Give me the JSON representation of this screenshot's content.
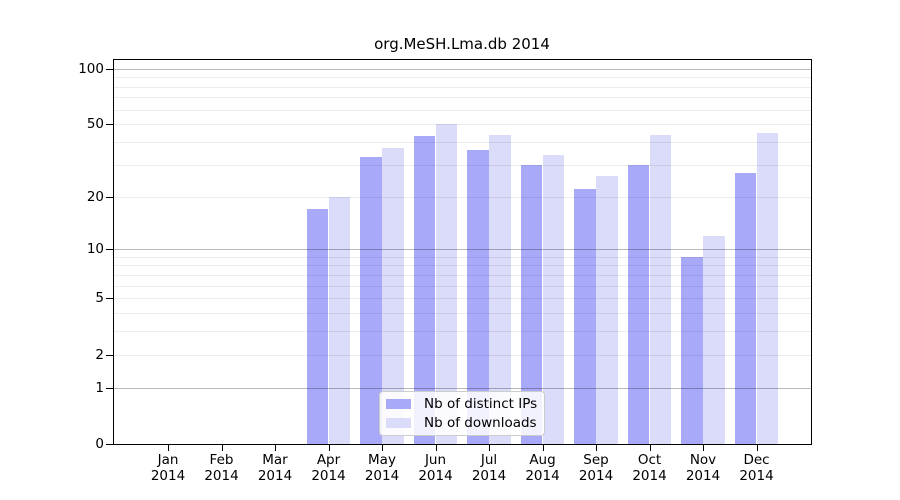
{
  "chart_data": {
    "type": "bar",
    "title": "org.MeSH.Lma.db 2014",
    "categories": [
      "Jan",
      "Feb",
      "Mar",
      "Apr",
      "May",
      "Jun",
      "Jul",
      "Aug",
      "Sep",
      "Oct",
      "Nov",
      "Dec"
    ],
    "year_label": "2014",
    "series": [
      {
        "name": "Nb of distinct IPs",
        "color": "#a9a9fa",
        "values": [
          0,
          0,
          0,
          17,
          33,
          43,
          36,
          30,
          22,
          30,
          9,
          27
        ]
      },
      {
        "name": "Nb of downloads",
        "color": "#dbdbfa",
        "values": [
          0,
          0,
          0,
          20,
          37,
          50,
          44,
          34,
          26,
          44,
          12,
          45
        ]
      }
    ],
    "yscale": "log1p",
    "ylim": [
      0,
      113
    ],
    "yticks": [
      0,
      1,
      2,
      5,
      10,
      20,
      50,
      100
    ],
    "yticks_minor": [
      3,
      4,
      6,
      7,
      8,
      9,
      30,
      40,
      60,
      70,
      80,
      90
    ],
    "yticks_emphasized": [
      1,
      10,
      100
    ],
    "grid": "horizontal",
    "legend_position": "bottom-center"
  },
  "colors": {
    "axis": "#000000",
    "grid_major": "rgba(0,0,0,0.28)",
    "grid_minor": "rgba(0,0,0,0.075)",
    "legend_border": "#cccccc",
    "legend_background": "rgba(255,255,255,0.85)",
    "text": "#000000",
    "background": "#ffffff"
  }
}
